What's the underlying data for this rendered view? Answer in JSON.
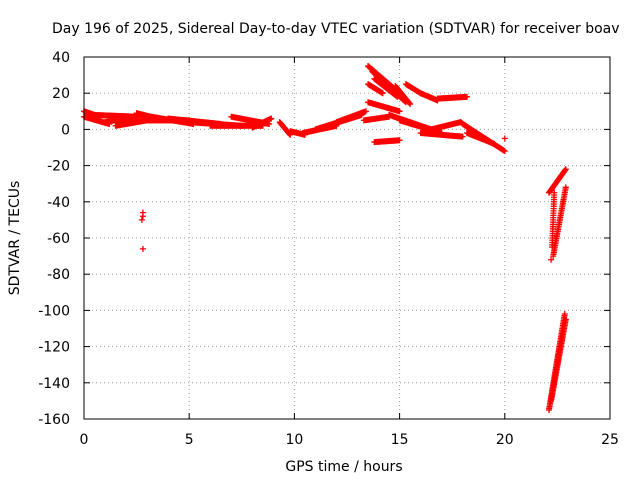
{
  "chart_data": {
    "type": "scatter",
    "title": "Day 196 of 2025, Sidereal Day-to-day VTEC variation (SDTVAR) for receiver boav",
    "xlabel": "GPS time / hours",
    "ylabel": "SDTVAR / TECUs",
    "xlim": [
      0,
      25
    ],
    "ylim": [
      -160,
      40
    ],
    "xticks": [
      0,
      5,
      10,
      15,
      20,
      25
    ],
    "yticks": [
      -160,
      -140,
      -120,
      -100,
      -80,
      -60,
      -40,
      -20,
      0,
      20,
      40
    ],
    "grid": true,
    "marker": "+",
    "color": "#ff0000",
    "series": [
      {
        "name": "SDTVAR",
        "segments": [
          {
            "from": [
              0.0,
              10
            ],
            "to": [
              0.5,
              8
            ],
            "n": 20
          },
          {
            "from": [
              0.0,
              7
            ],
            "to": [
              1.2,
              3
            ],
            "n": 30
          },
          {
            "from": [
              0.4,
              8
            ],
            "to": [
              2.5,
              7
            ],
            "n": 60
          },
          {
            "from": [
              1.0,
              4
            ],
            "to": [
              2.8,
              8
            ],
            "n": 50
          },
          {
            "from": [
              1.5,
              2
            ],
            "to": [
              3.0,
              5
            ],
            "n": 40
          },
          {
            "from": [
              2.5,
              9
            ],
            "to": [
              3.5,
              6
            ],
            "n": 25
          },
          {
            "from": [
              3.0,
              5
            ],
            "to": [
              5.0,
              5
            ],
            "n": 50
          },
          {
            "from": [
              3.2,
              7
            ],
            "to": [
              5.2,
              3
            ],
            "n": 50
          },
          {
            "from": [
              4.0,
              6
            ],
            "to": [
              6.5,
              3
            ],
            "n": 60
          },
          {
            "from": [
              5.0,
              4
            ],
            "to": [
              7.5,
              2
            ],
            "n": 60
          },
          {
            "from": [
              6.0,
              2
            ],
            "to": [
              8.5,
              2
            ],
            "n": 60
          },
          {
            "from": [
              7.0,
              7
            ],
            "to": [
              8.8,
              3
            ],
            "n": 40
          },
          {
            "from": [
              8.0,
              1
            ],
            "to": [
              8.9,
              6
            ],
            "n": 25
          },
          {
            "from": [
              9.3,
              4
            ],
            "to": [
              9.8,
              -3
            ],
            "n": 20
          },
          {
            "from": [
              9.8,
              -1
            ],
            "to": [
              10.5,
              -3
            ],
            "n": 20
          },
          {
            "from": [
              10.4,
              -2
            ],
            "to": [
              12.0,
              2
            ],
            "n": 40
          },
          {
            "from": [
              11.0,
              0
            ],
            "to": [
              13.2,
              8
            ],
            "n": 55
          },
          {
            "from": [
              12.0,
              4
            ],
            "to": [
              13.4,
              10
            ],
            "n": 35
          },
          {
            "from": [
              13.5,
              35
            ],
            "to": [
              14.8,
              22
            ],
            "n": 40
          },
          {
            "from": [
              13.7,
              32
            ],
            "to": [
              15.3,
              15
            ],
            "n": 45
          },
          {
            "from": [
              13.8,
              28
            ],
            "to": [
              14.9,
              18
            ],
            "n": 30
          },
          {
            "from": [
              14.8,
              24
            ],
            "to": [
              15.5,
              14
            ],
            "n": 20
          },
          {
            "from": [
              15.3,
              25
            ],
            "to": [
              16.0,
              20
            ],
            "n": 20
          },
          {
            "from": [
              16.0,
              20
            ],
            "to": [
              16.8,
              16
            ],
            "n": 20
          },
          {
            "from": [
              16.8,
              17
            ],
            "to": [
              18.2,
              18
            ],
            "n": 40
          },
          {
            "from": [
              13.5,
              25
            ],
            "to": [
              14.2,
              20
            ],
            "n": 20
          },
          {
            "from": [
              13.5,
              15
            ],
            "to": [
              15.0,
              10
            ],
            "n": 40
          },
          {
            "from": [
              13.3,
              5
            ],
            "to": [
              14.5,
              7
            ],
            "n": 25
          },
          {
            "from": [
              14.5,
              8
            ],
            "to": [
              16.5,
              0
            ],
            "n": 50
          },
          {
            "from": [
              15.0,
              5
            ],
            "to": [
              17.0,
              -2
            ],
            "n": 50
          },
          {
            "from": [
              16.0,
              -2
            ],
            "to": [
              18.0,
              -4
            ],
            "n": 45
          },
          {
            "from": [
              16.5,
              0
            ],
            "to": [
              17.9,
              4
            ],
            "n": 30
          },
          {
            "from": [
              17.9,
              4
            ],
            "to": [
              18.6,
              -2
            ],
            "n": 20
          },
          {
            "from": [
              18.0,
              3
            ],
            "to": [
              20.0,
              -12
            ],
            "n": 50
          },
          {
            "from": [
              18.2,
              -2
            ],
            "to": [
              19.5,
              -8
            ],
            "n": 30
          },
          {
            "from": [
              13.8,
              -7
            ],
            "to": [
              15.0,
              -6
            ],
            "n": 30
          },
          {
            "from": [
              22.1,
              -35
            ],
            "to": [
              22.9,
              -22
            ],
            "n": 30
          },
          {
            "from": [
              22.3,
              -70
            ],
            "to": [
              22.9,
              -32
            ],
            "n": 40
          },
          {
            "from": [
              22.25,
              -65
            ],
            "to": [
              22.35,
              -35
            ],
            "n": 25
          },
          {
            "from": [
              22.1,
              -155
            ],
            "to": [
              22.85,
              -102
            ],
            "n": 60
          },
          {
            "from": [
              22.2,
              -150
            ],
            "to": [
              22.9,
              -105
            ],
            "n": 55
          }
        ],
        "outliers": [
          {
            "x": 2.8,
            "y": -46
          },
          {
            "x": 2.8,
            "y": -48
          },
          {
            "x": 2.75,
            "y": -50
          },
          {
            "x": 2.8,
            "y": -66
          },
          {
            "x": 20.0,
            "y": -5
          },
          {
            "x": 22.2,
            "y": -72
          }
        ]
      }
    ]
  }
}
